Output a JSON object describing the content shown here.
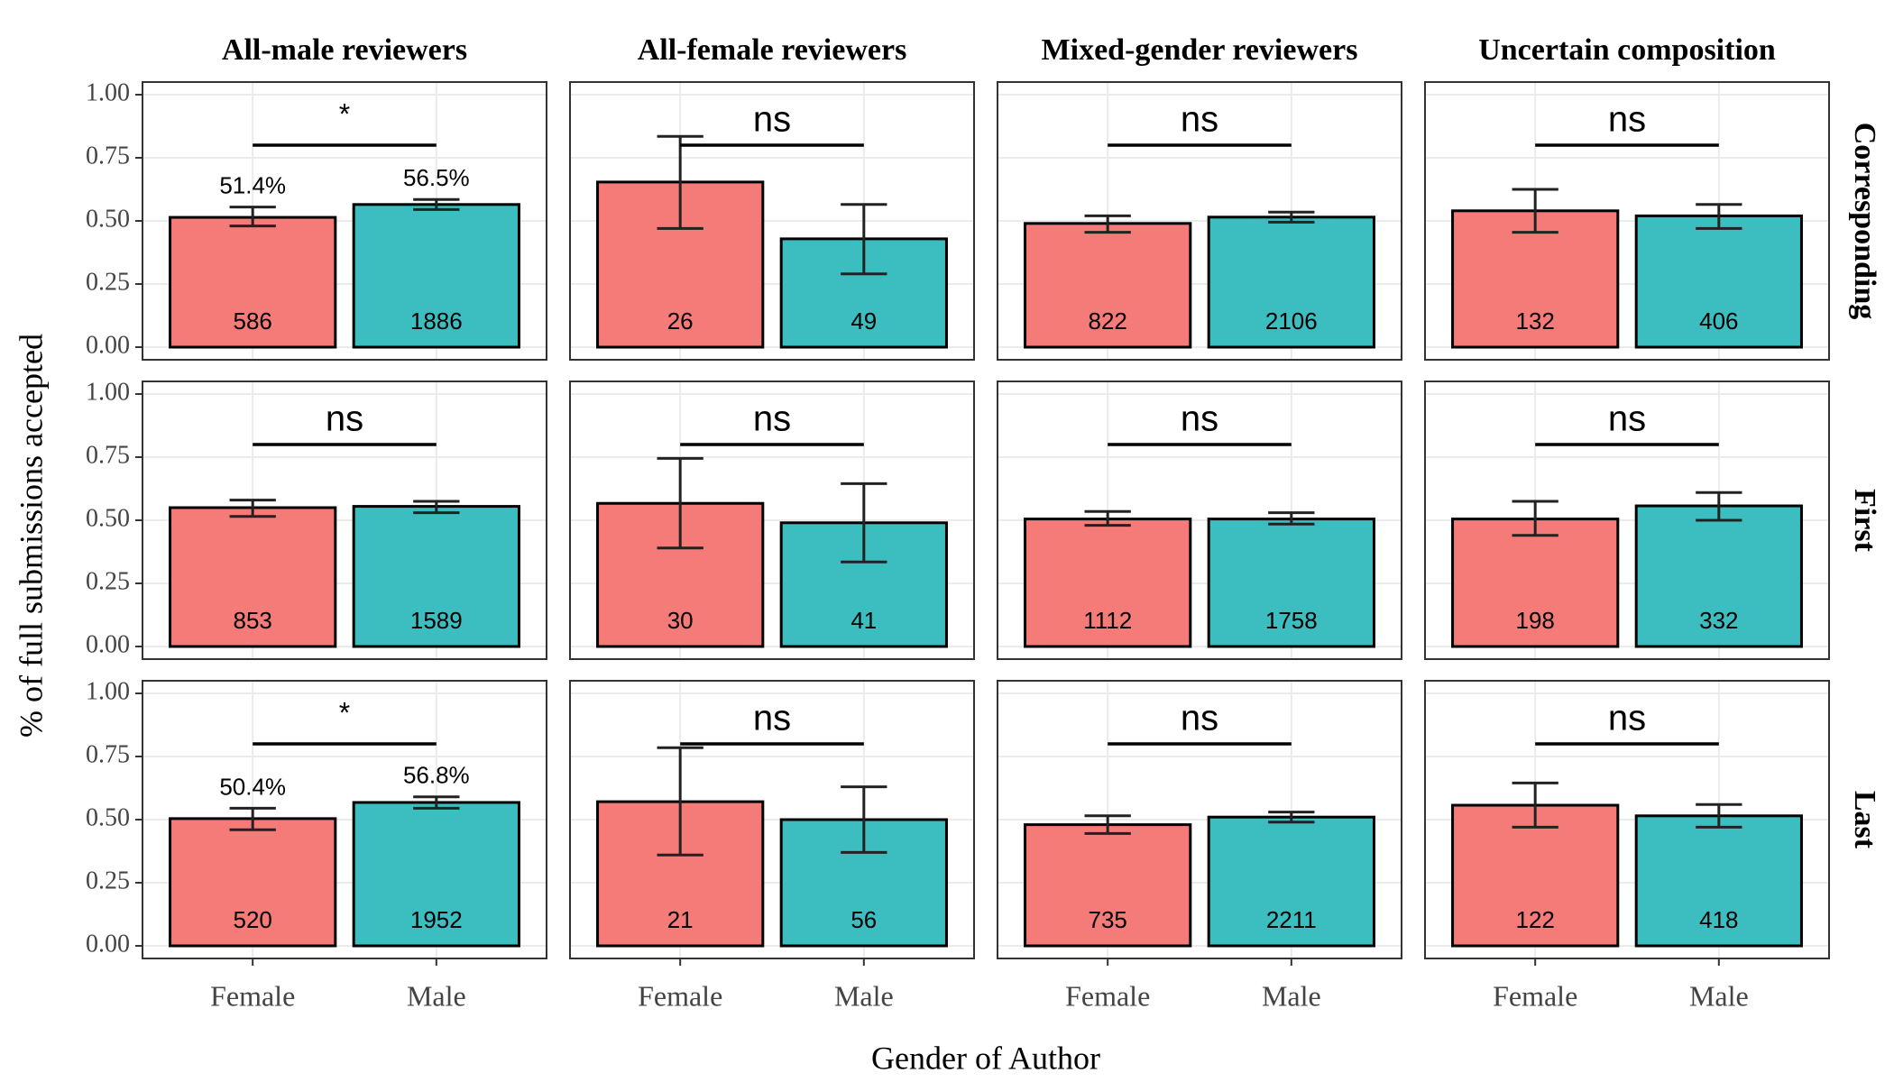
{
  "chart_data": {
    "type": "bar",
    "ylabel": "% of full submissions accepted",
    "xlabel": "Gender of Author",
    "columns": [
      "All-male reviewers",
      "All-female reviewers",
      "Mixed-gender reviewers",
      "Uncertain composition"
    ],
    "rows": [
      "Corresponding",
      "First",
      "Last"
    ],
    "categories": [
      "Female",
      "Male"
    ],
    "colors": [
      "#f47b77",
      "#3cbec1"
    ],
    "ylim": [
      -0.05,
      1.05
    ],
    "yticks": [
      {
        "value": 0,
        "label": "0.00"
      },
      {
        "value": 0.25,
        "label": "0.25"
      },
      {
        "value": 0.5,
        "label": "0.50"
      },
      {
        "value": 0.75,
        "label": "0.75"
      },
      {
        "value": 1,
        "label": "1.00"
      }
    ],
    "grid": true,
    "bracket_y": 0.8,
    "panels": [
      [
        {
          "significance": "*",
          "values": [
            0.514,
            0.565
          ],
          "value_labels": [
            "51.4%",
            "56.5%"
          ],
          "error_low": [
            0.48,
            0.545
          ],
          "error_high": [
            0.555,
            0.585
          ],
          "counts": [
            586,
            1886
          ]
        },
        {
          "significance": "ns",
          "values": [
            0.654,
            0.429
          ],
          "error_low": [
            0.47,
            0.29
          ],
          "error_high": [
            0.835,
            0.565
          ],
          "counts": [
            26,
            49
          ]
        },
        {
          "significance": "ns",
          "values": [
            0.49,
            0.515
          ],
          "error_low": [
            0.455,
            0.495
          ],
          "error_high": [
            0.52,
            0.535
          ],
          "counts": [
            822,
            2106
          ]
        },
        {
          "significance": "ns",
          "values": [
            0.54,
            0.52
          ],
          "error_low": [
            0.455,
            0.47
          ],
          "error_high": [
            0.625,
            0.565
          ],
          "counts": [
            132,
            406
          ]
        }
      ],
      [
        {
          "significance": "ns",
          "values": [
            0.55,
            0.555
          ],
          "error_low": [
            0.515,
            0.53
          ],
          "error_high": [
            0.58,
            0.575
          ],
          "counts": [
            853,
            1589
          ]
        },
        {
          "significance": "ns",
          "values": [
            0.567,
            0.49
          ],
          "error_low": [
            0.39,
            0.335
          ],
          "error_high": [
            0.745,
            0.645
          ],
          "counts": [
            30,
            41
          ]
        },
        {
          "significance": "ns",
          "values": [
            0.505,
            0.505
          ],
          "error_low": [
            0.48,
            0.485
          ],
          "error_high": [
            0.535,
            0.53
          ],
          "counts": [
            1112,
            1758
          ]
        },
        {
          "significance": "ns",
          "values": [
            0.505,
            0.557
          ],
          "error_low": [
            0.44,
            0.5
          ],
          "error_high": [
            0.575,
            0.61
          ],
          "counts": [
            198,
            332
          ]
        }
      ],
      [
        {
          "significance": "*",
          "values": [
            0.504,
            0.568
          ],
          "value_labels": [
            "50.4%",
            "56.8%"
          ],
          "error_low": [
            0.46,
            0.545
          ],
          "error_high": [
            0.545,
            0.59
          ],
          "counts": [
            520,
            1952
          ]
        },
        {
          "significance": "ns",
          "values": [
            0.571,
            0.5
          ],
          "error_low": [
            0.36,
            0.37
          ],
          "error_high": [
            0.785,
            0.63
          ],
          "counts": [
            21,
            56
          ]
        },
        {
          "significance": "ns",
          "values": [
            0.48,
            0.51
          ],
          "error_low": [
            0.445,
            0.49
          ],
          "error_high": [
            0.515,
            0.53
          ],
          "counts": [
            735,
            2211
          ]
        },
        {
          "significance": "ns",
          "values": [
            0.557,
            0.515
          ],
          "error_low": [
            0.47,
            0.47
          ],
          "error_high": [
            0.645,
            0.56
          ],
          "counts": [
            122,
            418
          ]
        }
      ]
    ]
  }
}
